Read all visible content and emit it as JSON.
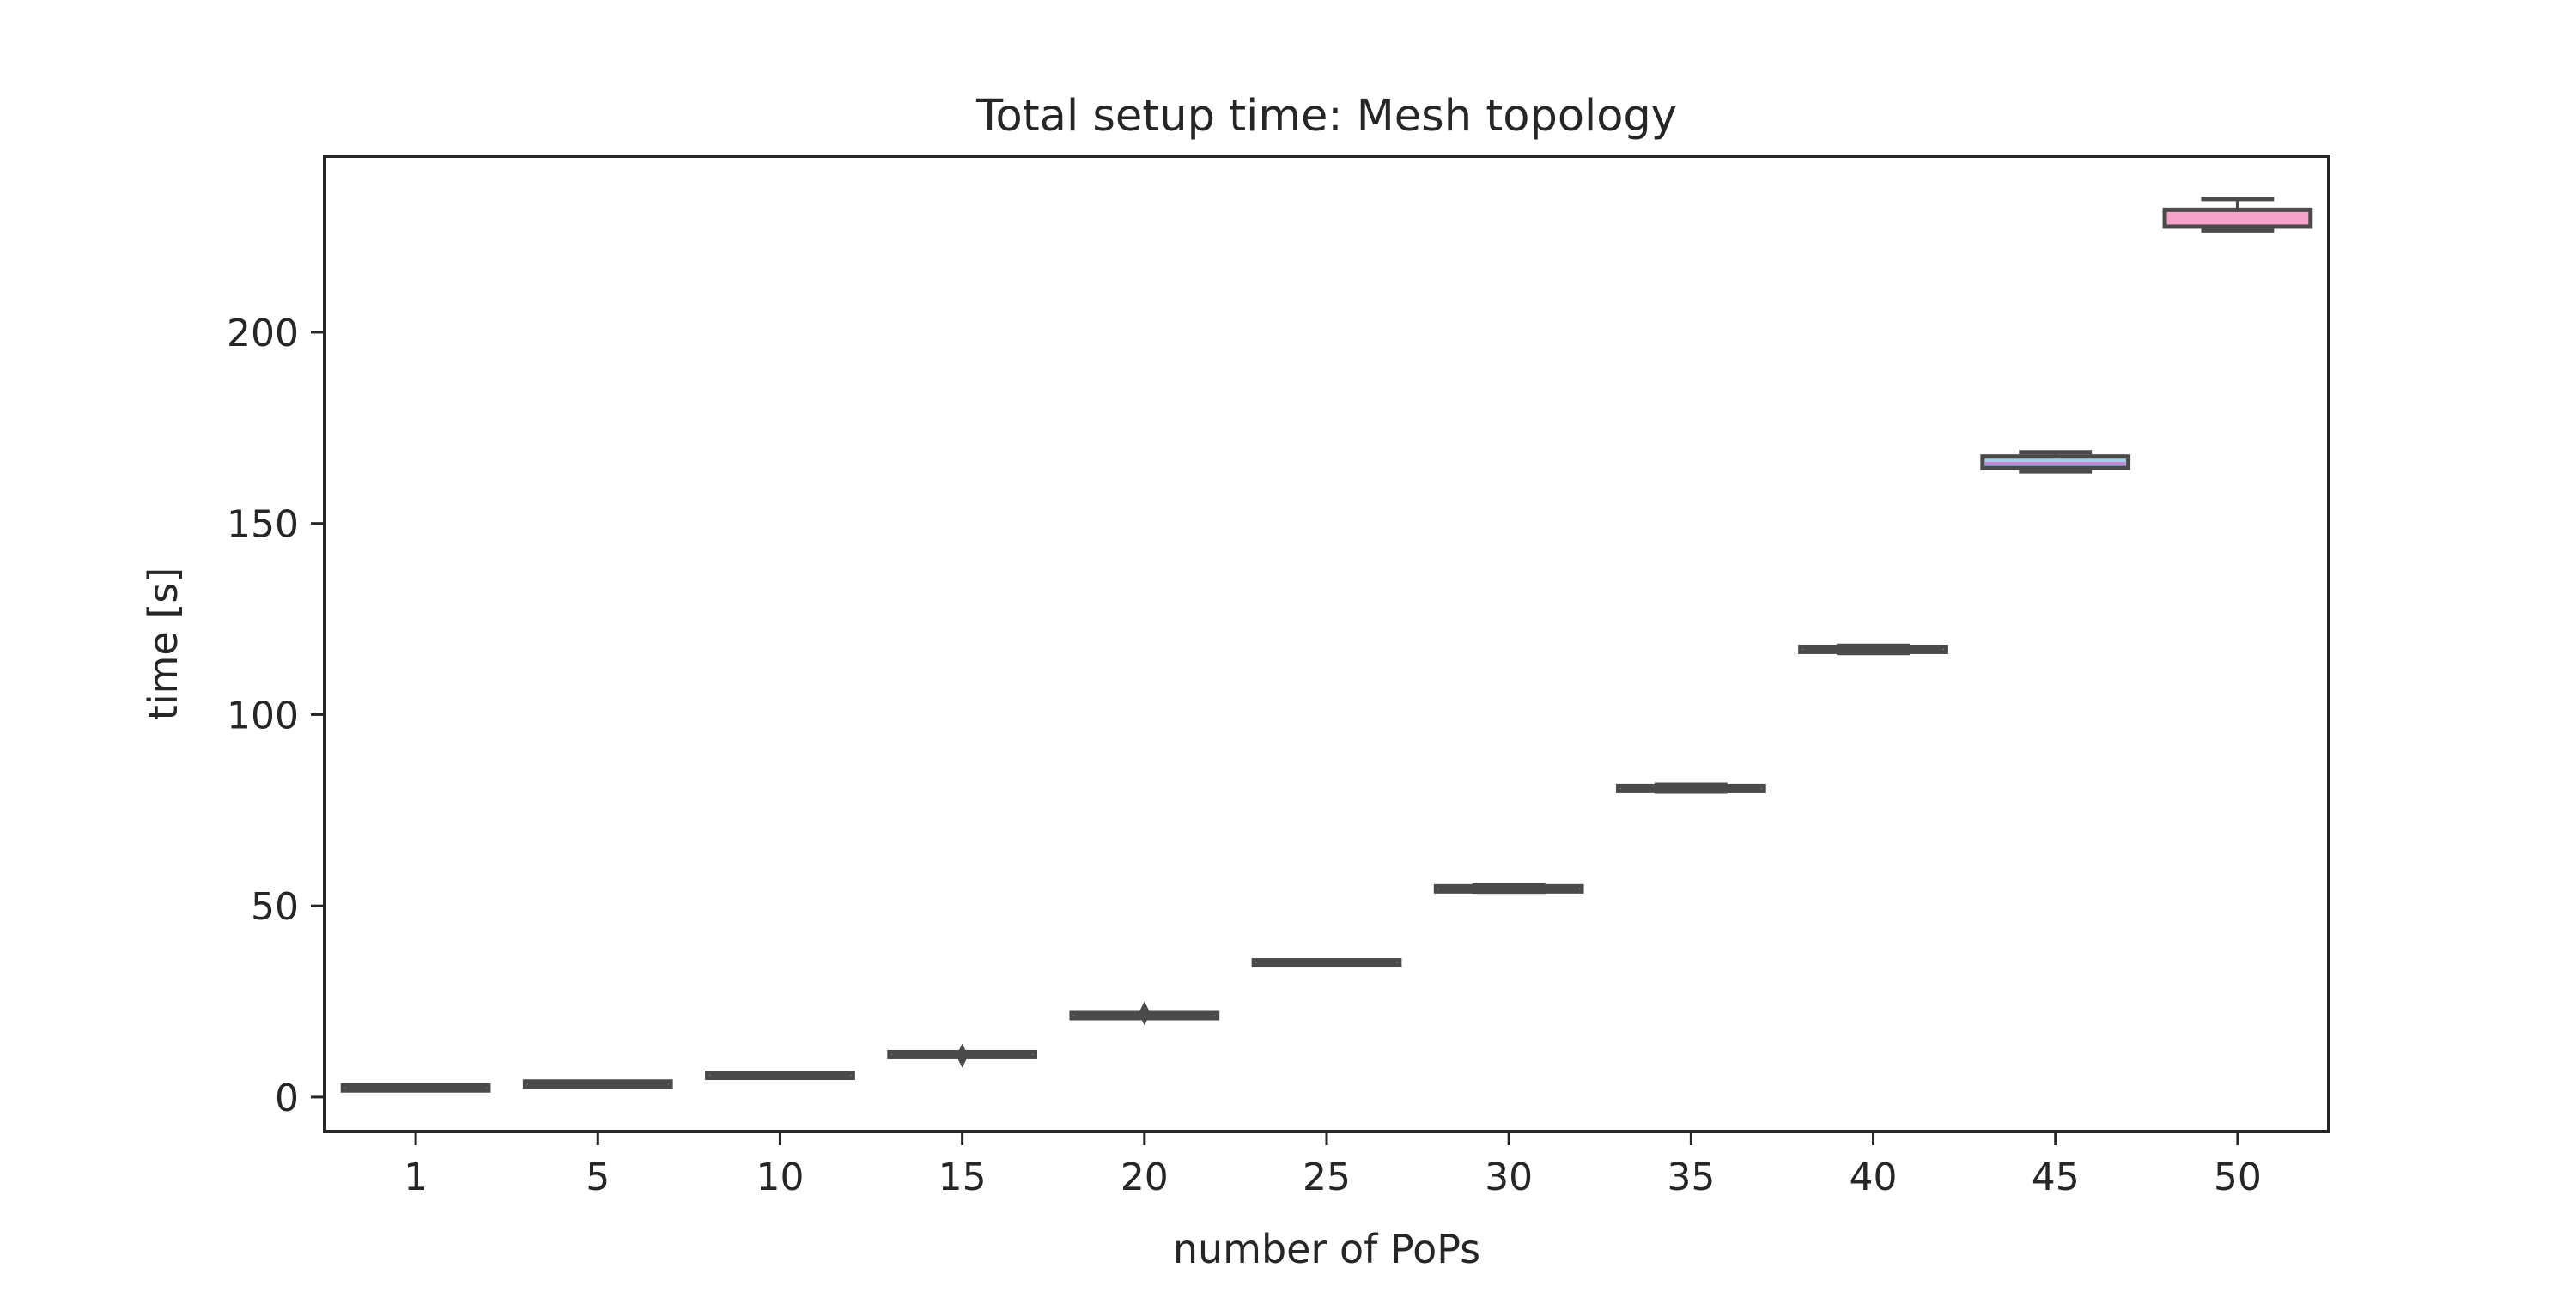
{
  "chart_data": {
    "type": "box",
    "title": "Total setup time: Mesh topology",
    "xlabel": "number of PoPs",
    "ylabel": "time [s]",
    "ylim": [
      -9,
      246
    ],
    "yticks": [
      0,
      50,
      100,
      150,
      200
    ],
    "grid": false,
    "legend": "none",
    "box_edge_color": "#4a4a4a",
    "categories": [
      "1",
      "5",
      "10",
      "15",
      "20",
      "25",
      "30",
      "35",
      "40",
      "45",
      "50"
    ],
    "boxes": [
      {
        "label": "1",
        "min": 2.0,
        "q1": 2.2,
        "median": 2.4,
        "q3": 2.6,
        "max": 2.8,
        "outliers": [],
        "fill": "#f4f4f4",
        "median_color": "#4a4a4a"
      },
      {
        "label": "5",
        "min": 3.0,
        "q1": 3.2,
        "median": 3.4,
        "q3": 3.6,
        "max": 3.8,
        "outliers": [],
        "fill": "#f4f4f4",
        "median_color": "#4a4a4a"
      },
      {
        "label": "10",
        "min": 5.2,
        "q1": 5.5,
        "median": 5.7,
        "q3": 5.9,
        "max": 6.2,
        "outliers": [],
        "fill": "#f4f4f4",
        "median_color": "#4a4a4a"
      },
      {
        "label": "15",
        "min": 10.6,
        "q1": 10.9,
        "median": 11.1,
        "q3": 11.3,
        "max": 11.6,
        "outliers": [
          10.8
        ],
        "fill": "#f4f4f4",
        "median_color": "#4a4a4a"
      },
      {
        "label": "20",
        "min": 20.8,
        "q1": 21.1,
        "median": 21.3,
        "q3": 21.5,
        "max": 21.8,
        "outliers": [
          21.9
        ],
        "fill": "#f4f4f4",
        "median_color": "#4a4a4a"
      },
      {
        "label": "25",
        "min": 34.7,
        "q1": 34.9,
        "median": 35.1,
        "q3": 35.3,
        "max": 35.5,
        "outliers": [],
        "fill": "#f4f4f4",
        "median_color": "#4a4a4a"
      },
      {
        "label": "30",
        "min": 53.7,
        "q1": 54.0,
        "median": 54.4,
        "q3": 54.9,
        "max": 55.3,
        "outliers": [],
        "fill": "#f4f4f4",
        "median_color": "#4a4a4a"
      },
      {
        "label": "35",
        "min": 79.9,
        "q1": 80.2,
        "median": 80.7,
        "q3": 81.2,
        "max": 81.7,
        "outliers": [],
        "fill": "#f4f4f4",
        "median_color": "#4a4a4a"
      },
      {
        "label": "40",
        "min": 116.1,
        "q1": 116.5,
        "median": 117.0,
        "q3": 117.6,
        "max": 118.0,
        "outliers": [],
        "fill": "#f4f4f4",
        "median_color": "#4a4a4a"
      },
      {
        "label": "45",
        "min": 163.6,
        "q1": 164.5,
        "median": 165.6,
        "q3": 167.5,
        "max": 168.6,
        "outliers": [],
        "fill": "#9dd3ea",
        "median_color": "#c685d6"
      },
      {
        "label": "50",
        "min": 226.6,
        "q1": 227.6,
        "median": 229.5,
        "q3": 232.0,
        "max": 234.8,
        "outliers": [],
        "fill": "#f5a3c8",
        "median_color": "#f5a3c8"
      }
    ]
  }
}
